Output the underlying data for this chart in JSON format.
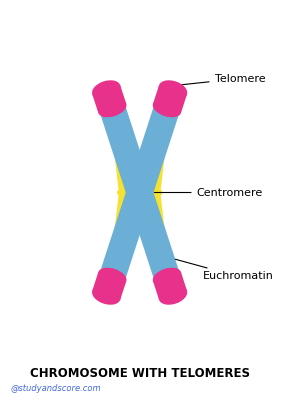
{
  "title": "CHROMOSOME WITH TELOMERES",
  "watermark": "@studyandscore.com",
  "label_telomere": "Telomere",
  "label_centromere": "Centromere",
  "label_euchromatin": "Euchromatin",
  "color_telomere": "#E8318A",
  "color_euchromatin": "#6BAED6",
  "color_centromere": "#F5E130",
  "color_background": "#FFFFFF",
  "color_title": "#000000",
  "color_watermark": "#4169E1",
  "figsize": [
    3.06,
    4.03
  ],
  "dpi": 100
}
